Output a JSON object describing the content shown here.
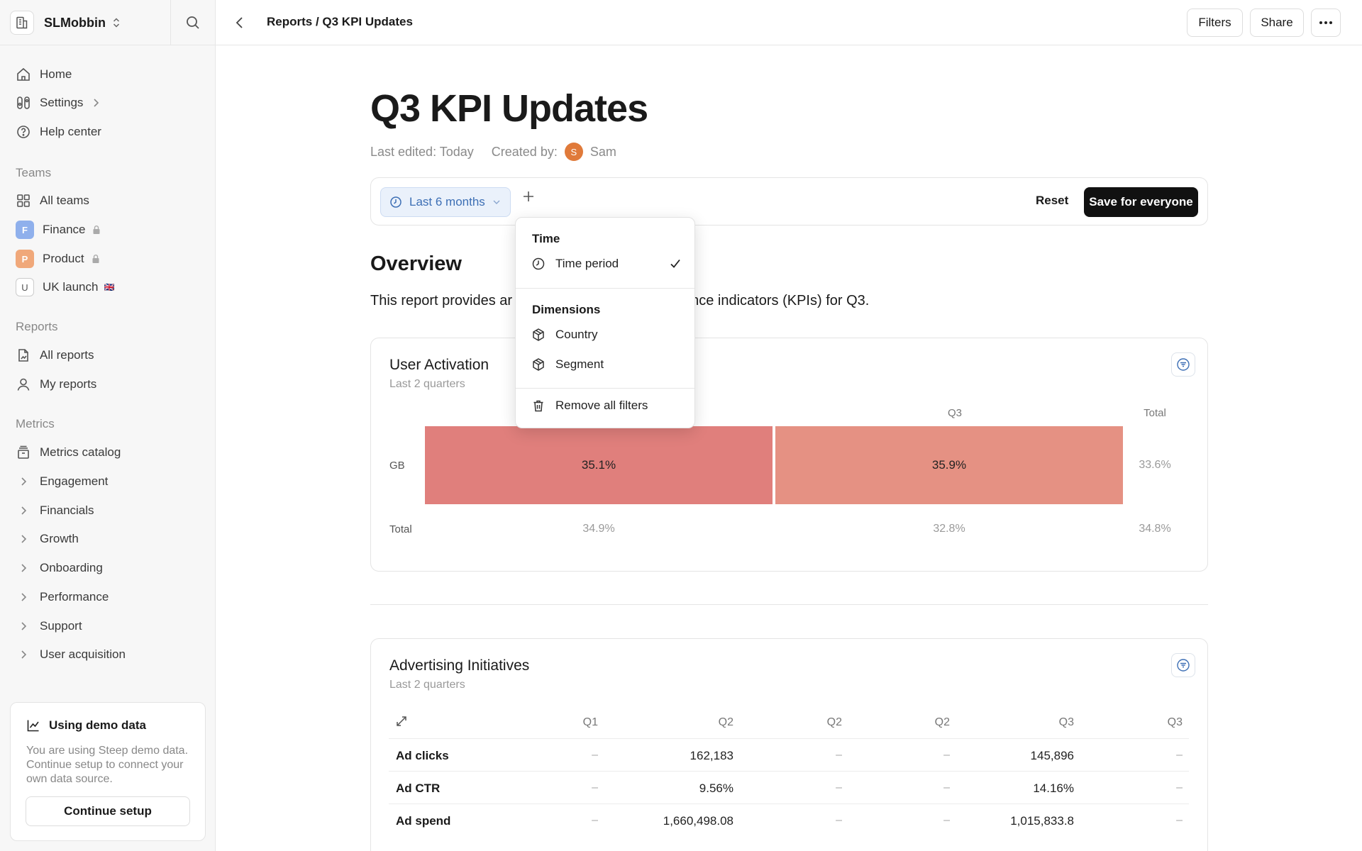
{
  "workspace": {
    "name": "SLMobbin"
  },
  "nav": {
    "home": "Home",
    "settings": "Settings",
    "help": "Help center",
    "teams_label": "Teams",
    "all_teams": "All teams",
    "teams": [
      {
        "label": "Finance",
        "badge": "F",
        "color": "#8fb0ec"
      },
      {
        "label": "Product",
        "badge": "P",
        "color": "#f0a87a"
      },
      {
        "label": "UK launch",
        "badge": "U",
        "flag": "🇬🇧"
      }
    ],
    "reports_label": "Reports",
    "all_reports": "All reports",
    "my_reports": "My reports",
    "metrics_label": "Metrics",
    "metrics_catalog": "Metrics catalog",
    "metric_groups": [
      "Engagement",
      "Financials",
      "Growth",
      "Onboarding",
      "Performance",
      "Support",
      "User acquisition"
    ]
  },
  "demo": {
    "title": "Using demo data",
    "text": "You are using Steep demo data. Continue setup to connect your own data source.",
    "button": "Continue setup"
  },
  "topbar": {
    "breadcrumb": "Reports / Q3 KPI Updates",
    "filters": "Filters",
    "share": "Share"
  },
  "report": {
    "title": "Q3 KPI Updates",
    "last_edited": "Last edited: Today",
    "created_by": "Created by:",
    "author_initial": "S",
    "author": "Sam",
    "filter_chip": "Last 6 months",
    "reset": "Reset",
    "save": "Save for everyone",
    "overview_heading": "Overview",
    "overview_start": "This report provides ar",
    "overview_end": "ance indicators (KPIs) for Q3."
  },
  "menu": {
    "time_heading": "Time",
    "time_period": "Time period",
    "dimensions_heading": "Dimensions",
    "country": "Country",
    "segment": "Segment",
    "remove_all": "Remove all filters"
  },
  "user_activation": {
    "title": "User Activation",
    "subtitle": "Last 2 quarters",
    "col_q3": "Q3",
    "col_total": "Total",
    "row_gb": "GB",
    "row_total": "Total",
    "gb_q2": "35.1%",
    "gb_q3": "35.9%",
    "gb_total": "33.6%",
    "total_q2": "34.9%",
    "total_q3": "32.8%",
    "total_total": "34.8%",
    "colors": {
      "q2": "#e07f7c",
      "q3": "#e59183"
    }
  },
  "advertising": {
    "title": "Advertising Initiatives",
    "subtitle": "Last 2 quarters",
    "headers": [
      "Q1",
      "Q2",
      "Q2",
      "Q2",
      "Q3",
      "Q3"
    ],
    "dash": "–",
    "rows": [
      {
        "label": "Ad clicks",
        "q2": "162,183",
        "q3": "145,896"
      },
      {
        "label": "Ad CTR",
        "q2": "9.56%",
        "q3": "14.16%"
      },
      {
        "label": "Ad spend",
        "q2": "1,660,498.08",
        "q3": "1,015,833.8"
      }
    ]
  }
}
